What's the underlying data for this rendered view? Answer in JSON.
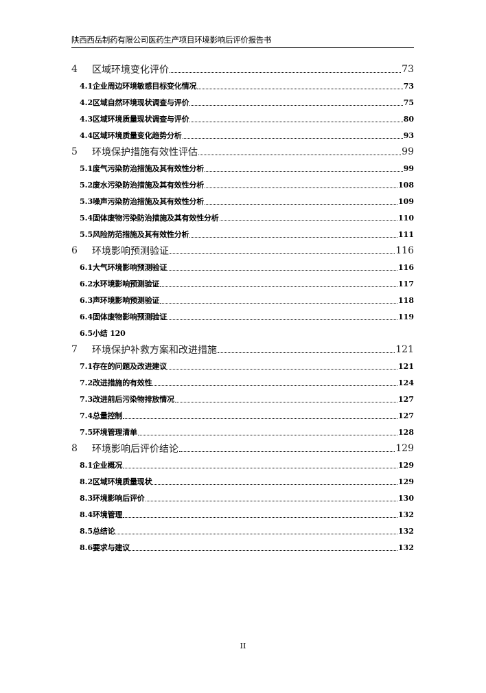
{
  "header": {
    "title": "陕西西岳制药有限公司医药生产项目环境影响后评价报告书"
  },
  "toc": [
    {
      "level": 1,
      "num": "4",
      "title": "区域环境变化评价",
      "page": "73"
    },
    {
      "level": 2,
      "num": "4.1",
      "title": "企业周边环境敏感目标变化情况",
      "page": "73"
    },
    {
      "level": 2,
      "num": "4.2",
      "title": "区域自然环境现状调查与评价",
      "page": "75"
    },
    {
      "level": 2,
      "num": "4.3",
      "title": "区域环境质量现状调查与评价",
      "page": "80"
    },
    {
      "level": 2,
      "num": "4.4",
      "title": "区域环境质量变化趋势分析",
      "page": "93"
    },
    {
      "level": 1,
      "num": "5",
      "title": "环境保护措施有效性评估",
      "page": "99"
    },
    {
      "level": 2,
      "num": "5.1",
      "title": "废气污染防治措施及其有效性分析",
      "page": "99"
    },
    {
      "level": 2,
      "num": "5.2",
      "title": "废水污染防治措施及其有效性分析",
      "page": "108"
    },
    {
      "level": 2,
      "num": "5.3",
      "title": "噪声污染防治措施及其有效性分析",
      "page": "109"
    },
    {
      "level": 2,
      "num": "5.4",
      "title": "固体废物污染防治措施及其有效性分析",
      "page": "110"
    },
    {
      "level": 2,
      "num": "5.5",
      "title": "风险防范措施及其有效性分析",
      "page": "111"
    },
    {
      "level": 1,
      "num": "6",
      "title": "环境影响预测验证",
      "page": "116"
    },
    {
      "level": 2,
      "num": "6.1",
      "title": "大气环境影响预测验证",
      "page": "116"
    },
    {
      "level": 2,
      "num": "6.2",
      "title": "水环境影响预测验证",
      "page": "117"
    },
    {
      "level": 2,
      "num": "6.3",
      "title": "声环境影响预测验证",
      "page": "118"
    },
    {
      "level": 2,
      "num": "6.4",
      "title": "固体废物影响预测验证",
      "page": "119"
    },
    {
      "level": 2,
      "num": "6.5",
      "title": "小结 120",
      "page": "",
      "nodots": true
    },
    {
      "level": 1,
      "num": "7",
      "title": "环境保护补救方案和改进措施",
      "page": "121"
    },
    {
      "level": 2,
      "num": "7.1",
      "title": "存在的问题及改进建议",
      "page": "121"
    },
    {
      "level": 2,
      "num": "7.2",
      "title": "改进措施的有效性",
      "page": "124"
    },
    {
      "level": 2,
      "num": "7.3",
      "title": "改进前后污染物排放情况",
      "page": "127"
    },
    {
      "level": 2,
      "num": "7.4",
      "title": "总量控制",
      "page": "127"
    },
    {
      "level": 2,
      "num": "7.5",
      "title": "环境管理清单",
      "page": "128"
    },
    {
      "level": 1,
      "num": "8",
      "title": "环境影响后评价结论",
      "page": "129"
    },
    {
      "level": 2,
      "num": "8.1",
      "title": "企业概况",
      "page": "129"
    },
    {
      "level": 2,
      "num": "8.2",
      "title": "区域环境质量现状",
      "page": "129"
    },
    {
      "level": 2,
      "num": "8.3",
      "title": "环境影响后评价",
      "page": "130"
    },
    {
      "level": 2,
      "num": "8.4",
      "title": "环境管理",
      "page": "132"
    },
    {
      "level": 2,
      "num": "8.5",
      "title": "总结论",
      "page": "132"
    },
    {
      "level": 2,
      "num": "8.6",
      "title": "要求与建议",
      "page": "132"
    }
  ],
  "footer": {
    "page_number": "II"
  }
}
